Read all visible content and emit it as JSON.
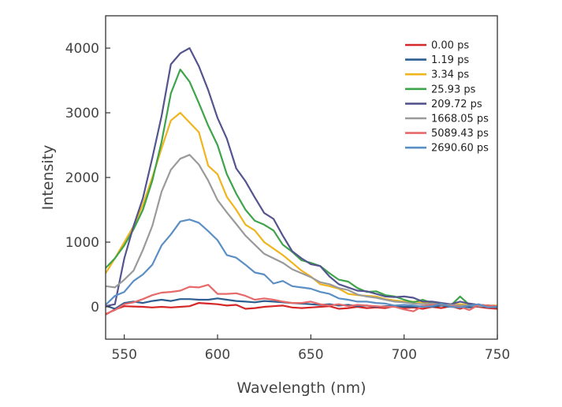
{
  "chart_data": {
    "type": "line",
    "title": "",
    "xlabel": "Wavelength (nm)",
    "ylabel": "Intensity",
    "xlim": [
      540,
      750
    ],
    "ylim": [
      -500,
      4500
    ],
    "xticks": [
      550,
      600,
      650,
      700,
      750
    ],
    "yticks": [
      0,
      1000,
      2000,
      3000,
      4000
    ],
    "grid": false,
    "legend_position": "top-right",
    "x": [
      540,
      545,
      550,
      555,
      560,
      565,
      570,
      575,
      580,
      585,
      590,
      595,
      600,
      605,
      610,
      615,
      620,
      625,
      630,
      635,
      640,
      645,
      650,
      655,
      660,
      665,
      670,
      675,
      680,
      685,
      690,
      695,
      700,
      705,
      710,
      715,
      720,
      725,
      730,
      735,
      740,
      745,
      750
    ],
    "series": [
      {
        "name": "0.00 ps",
        "color": "#d62728",
        "values": [
          -120,
          -40,
          10,
          5,
          0,
          -10,
          0,
          -10,
          0,
          10,
          60,
          50,
          40,
          20,
          30,
          -30,
          -20,
          0,
          10,
          20,
          -10,
          -20,
          -10,
          0,
          10,
          -30,
          -20,
          0,
          -20,
          -10,
          -20,
          10,
          -20,
          -10,
          -30,
          0,
          -20,
          10,
          -30,
          10,
          0,
          -20,
          -30
        ]
      },
      {
        "name": "1.19 ps",
        "color": "#2c5f8f",
        "values": [
          20,
          -30,
          60,
          80,
          60,
          90,
          110,
          90,
          120,
          120,
          110,
          110,
          130,
          110,
          90,
          80,
          70,
          90,
          80,
          70,
          60,
          50,
          40,
          30,
          40,
          20,
          30,
          10,
          20,
          0,
          10,
          10,
          0,
          0,
          10,
          0,
          20,
          0,
          10,
          -10,
          10,
          0,
          -10
        ]
      },
      {
        "name": "3.34 ps",
        "color": "#f0b51c",
        "values": [
          520,
          750,
          1000,
          1250,
          1580,
          2000,
          2450,
          2880,
          3000,
          2850,
          2700,
          2180,
          2050,
          1700,
          1500,
          1270,
          1180,
          1000,
          900,
          800,
          680,
          560,
          470,
          350,
          320,
          280,
          200,
          180,
          170,
          160,
          120,
          100,
          80,
          80,
          70,
          60,
          50,
          40,
          40,
          30,
          30,
          20,
          20
        ]
      },
      {
        "name": "25.93 ps",
        "color": "#3ea44a",
        "values": [
          600,
          750,
          950,
          1200,
          1500,
          1950,
          2550,
          3300,
          3670,
          3480,
          3150,
          2800,
          2500,
          2050,
          1750,
          1500,
          1330,
          1270,
          1180,
          960,
          850,
          720,
          680,
          630,
          520,
          420,
          390,
          290,
          230,
          240,
          180,
          160,
          110,
          70,
          110,
          60,
          30,
          20,
          160,
          30,
          20,
          20,
          10
        ]
      },
      {
        "name": "209.72 ps",
        "color": "#54548e",
        "values": [
          10,
          40,
          750,
          1250,
          1680,
          2300,
          2950,
          3750,
          3920,
          4000,
          3720,
          3350,
          2920,
          2600,
          2140,
          1940,
          1690,
          1450,
          1360,
          1100,
          860,
          750,
          660,
          630,
          470,
          350,
          300,
          250,
          240,
          200,
          160,
          150,
          160,
          140,
          80,
          80,
          60,
          40,
          80,
          50,
          30,
          20,
          10
        ]
      },
      {
        "name": "1668.05 ps",
        "color": "#9a9a9a",
        "values": [
          320,
          300,
          420,
          560,
          880,
          1250,
          1780,
          2120,
          2290,
          2350,
          2200,
          1950,
          1650,
          1460,
          1280,
          1100,
          960,
          820,
          750,
          680,
          580,
          520,
          460,
          380,
          350,
          290,
          260,
          190,
          160,
          140,
          110,
          80,
          70,
          50,
          40,
          50,
          30,
          30,
          20,
          20,
          10,
          10,
          10
        ]
      },
      {
        "name": "5089.43 ps",
        "color": "#e66a6a",
        "values": [
          -110,
          -50,
          40,
          70,
          120,
          180,
          220,
          230,
          250,
          310,
          300,
          340,
          200,
          200,
          210,
          170,
          110,
          130,
          110,
          80,
          60,
          60,
          80,
          40,
          20,
          40,
          10,
          30,
          20,
          10,
          0,
          0,
          -40,
          -70,
          10,
          30,
          40,
          10,
          0,
          -50,
          30,
          20,
          10
        ]
      },
      {
        "name": "2690.60 ps",
        "color": "#5b8fc4",
        "values": [
          30,
          170,
          230,
          400,
          500,
          650,
          950,
          1120,
          1320,
          1350,
          1300,
          1170,
          1030,
          800,
          760,
          650,
          530,
          500,
          360,
          400,
          320,
          300,
          280,
          230,
          200,
          130,
          110,
          80,
          80,
          60,
          50,
          20,
          30,
          20,
          0,
          10,
          50,
          0,
          -10,
          20,
          40,
          -10,
          0
        ]
      }
    ]
  }
}
